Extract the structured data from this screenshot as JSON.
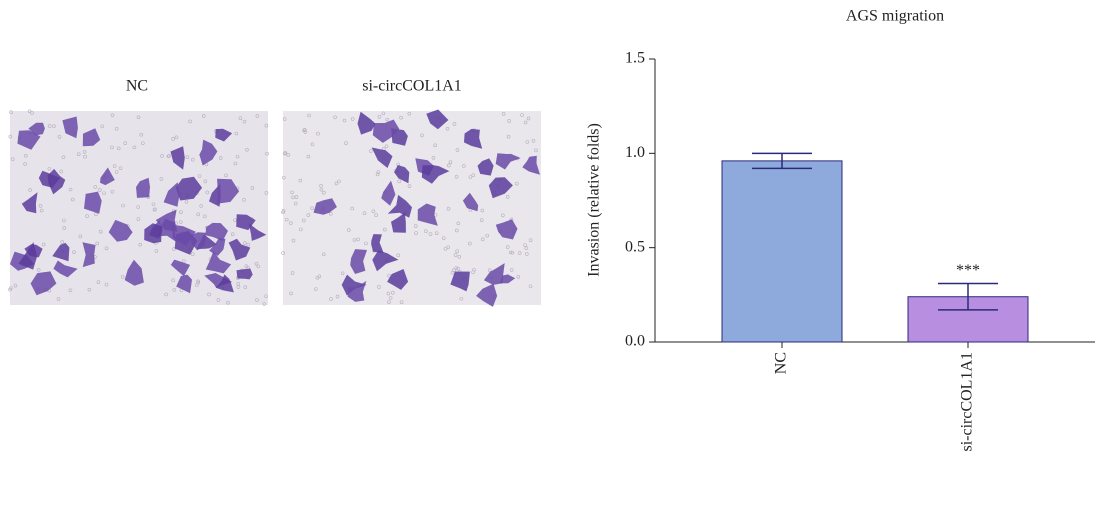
{
  "panels": [
    {
      "label": "NC"
    },
    {
      "label": "si-circCOL1A1"
    }
  ],
  "chart_data": {
    "type": "bar",
    "title": "AGS migration",
    "y_label": "Invasion (relative folds)",
    "categories": [
      "NC",
      "si-circCOL1A1"
    ],
    "values": [
      0.96,
      0.24
    ],
    "errors": [
      0.04,
      0.07
    ],
    "colors": [
      "#8eaadc",
      "#b88fe0"
    ],
    "edge_color": "#2a2a7a",
    "annotation": "***",
    "ylim": [
      0,
      1.5
    ],
    "yticks": [
      {
        "value": 0,
        "label": "0.0"
      },
      0.5,
      {
        "value": 1,
        "label": "1.0"
      },
      1.5
    ]
  }
}
